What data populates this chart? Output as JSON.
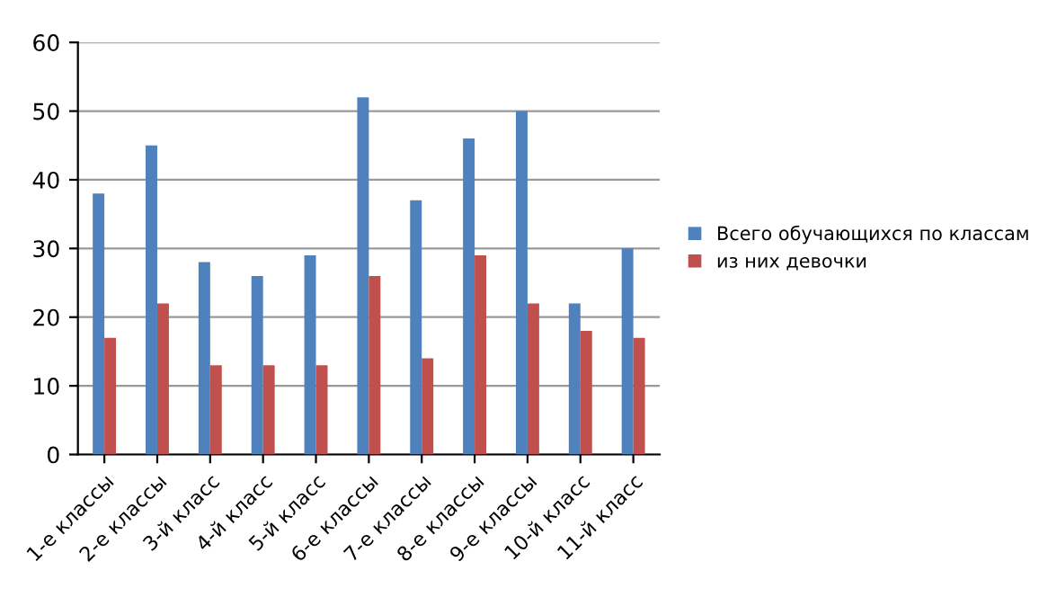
{
  "chart_data": {
    "type": "bar",
    "categories": [
      "1-е классы",
      "2-е классы",
      "3-й класс",
      "4-й класс",
      "5-й класс",
      "6-е классы",
      "7-е классы",
      "8-е классы",
      "9-е классы",
      "10-й класс",
      "11-й класс"
    ],
    "series": [
      {
        "name": "Всего обучающихся по классам",
        "color": "#4f81bd",
        "values": [
          38,
          45,
          28,
          26,
          29,
          52,
          37,
          46,
          50,
          22,
          30
        ]
      },
      {
        "name": "из них девочки",
        "color": "#c0504d",
        "values": [
          17,
          22,
          13,
          13,
          13,
          26,
          14,
          29,
          22,
          18,
          17
        ]
      }
    ],
    "ylim": [
      0,
      60
    ],
    "yticks": [
      0,
      10,
      20,
      30,
      40,
      50,
      60
    ],
    "grid": "y",
    "legend": "right"
  }
}
